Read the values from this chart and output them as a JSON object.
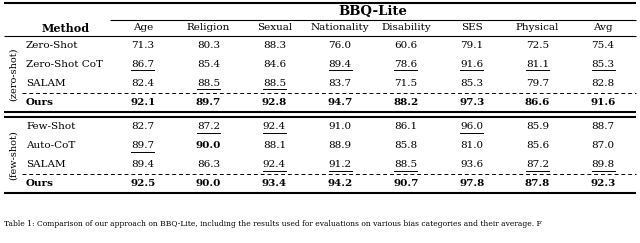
{
  "title": "BBQ-Lite",
  "method_header": "Method",
  "col_headers": [
    "Age",
    "Religion",
    "Sexual",
    "Nationality",
    "Disability",
    "SES",
    "Physical",
    "Avg"
  ],
  "row_groups": [
    {
      "group_label": "(zero-shot)",
      "rows": [
        {
          "method": "Zero-Shot",
          "values": [
            "71.3",
            "80.3",
            "88.3",
            "76.0",
            "60.6",
            "79.1",
            "72.5",
            "75.4"
          ],
          "underline": [
            false,
            false,
            false,
            false,
            false,
            false,
            false,
            false
          ],
          "bold": [
            false,
            false,
            false,
            false,
            false,
            false,
            false,
            false
          ],
          "method_bold": false
        },
        {
          "method": "Zero-Shot CoT",
          "values": [
            "86.7",
            "85.4",
            "84.6",
            "89.4",
            "78.6",
            "91.6",
            "81.1",
            "85.3"
          ],
          "underline": [
            true,
            false,
            false,
            true,
            true,
            true,
            true,
            true
          ],
          "bold": [
            false,
            false,
            false,
            false,
            false,
            false,
            false,
            false
          ],
          "method_bold": false
        },
        {
          "method": "SALAM",
          "values": [
            "82.4",
            "88.5",
            "88.5",
            "83.7",
            "71.5",
            "85.3",
            "79.7",
            "82.8"
          ],
          "underline": [
            false,
            true,
            true,
            false,
            false,
            false,
            false,
            false
          ],
          "bold": [
            false,
            false,
            false,
            false,
            false,
            false,
            false,
            false
          ],
          "method_bold": false
        },
        {
          "method": "Ours",
          "values": [
            "92.1",
            "89.7",
            "92.8",
            "94.7",
            "88.2",
            "97.3",
            "86.6",
            "91.6"
          ],
          "underline": [
            false,
            false,
            false,
            false,
            false,
            false,
            false,
            false
          ],
          "bold": [
            true,
            true,
            true,
            true,
            true,
            true,
            true,
            true
          ],
          "method_bold": true,
          "is_ours": true
        }
      ]
    },
    {
      "group_label": "(few-shot)",
      "rows": [
        {
          "method": "Few-Shot",
          "values": [
            "82.7",
            "87.2",
            "92.4",
            "91.0",
            "86.1",
            "96.0",
            "85.9",
            "88.7"
          ],
          "underline": [
            false,
            true,
            true,
            false,
            false,
            true,
            false,
            false
          ],
          "bold": [
            false,
            false,
            false,
            false,
            false,
            false,
            false,
            false
          ],
          "method_bold": false
        },
        {
          "method": "Auto-CoT",
          "values": [
            "89.7",
            "90.0",
            "88.1",
            "88.9",
            "85.8",
            "81.0",
            "85.6",
            "87.0"
          ],
          "underline": [
            true,
            false,
            false,
            false,
            false,
            false,
            false,
            false
          ],
          "bold": [
            false,
            true,
            false,
            false,
            false,
            false,
            false,
            false
          ],
          "method_bold": false
        },
        {
          "method": "SALAM",
          "values": [
            "89.4",
            "86.3",
            "92.4",
            "91.2",
            "88.5",
            "93.6",
            "87.2",
            "89.8"
          ],
          "underline": [
            false,
            false,
            true,
            true,
            true,
            false,
            true,
            true
          ],
          "bold": [
            false,
            false,
            false,
            false,
            false,
            false,
            false,
            false
          ],
          "method_bold": false
        },
        {
          "method": "Ours",
          "values": [
            "92.5",
            "90.0",
            "93.4",
            "94.2",
            "90.7",
            "97.8",
            "87.8",
            "92.3"
          ],
          "underline": [
            false,
            false,
            false,
            false,
            false,
            false,
            false,
            false
          ],
          "bold": [
            true,
            true,
            true,
            true,
            true,
            true,
            true,
            true
          ],
          "method_bold": true,
          "is_ours": true
        }
      ]
    }
  ],
  "footer": "Table 1: Comparison of our approach on BBQ-Lite, including the results used for evaluations on various bias categories and their average. F",
  "fs": 7.5,
  "title_fs": 9.5,
  "header_fs": 8.0,
  "footer_fs": 5.5,
  "group_fs": 7.0
}
